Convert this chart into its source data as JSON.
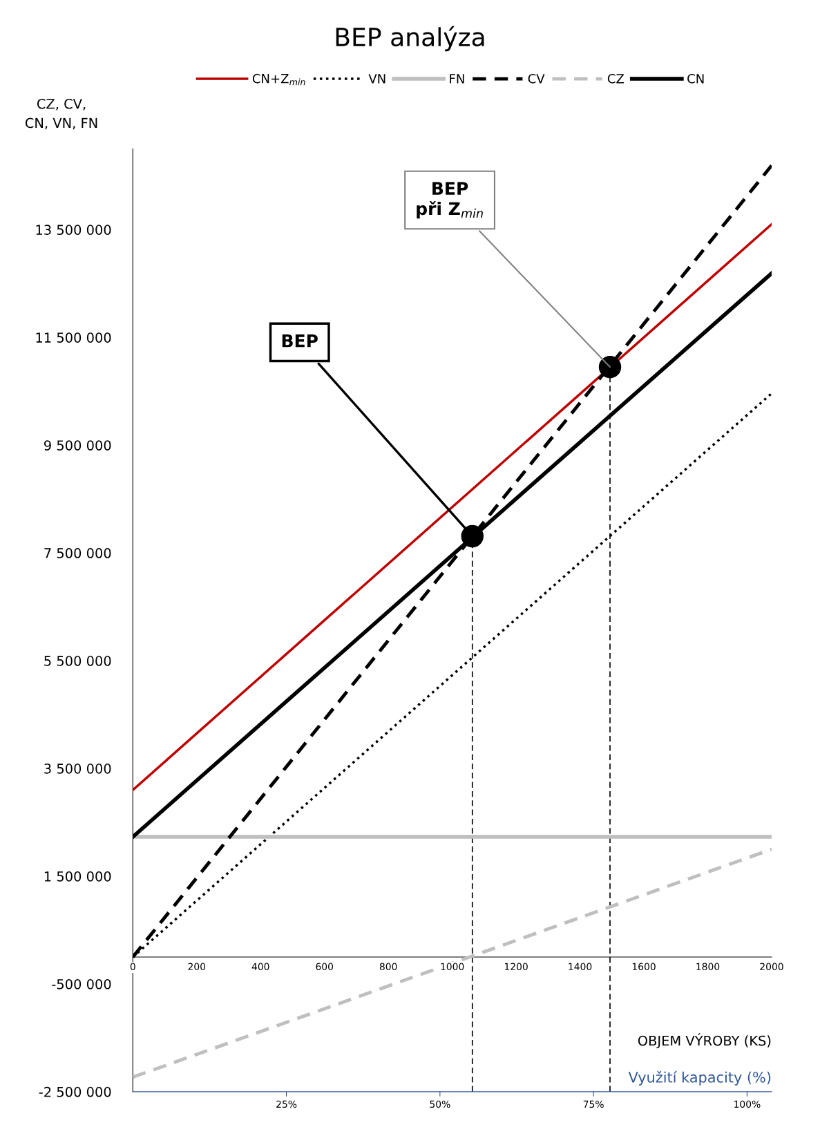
{
  "chart_data": {
    "type": "line",
    "title": "BEP analýza",
    "xlabel": "OBJEM VÝROBY (KS)",
    "ylabel": "CZ, CV,\nCN, VN, FN",
    "x2label": "Využití kapacity (%)",
    "xlim": [
      0,
      2000
    ],
    "xticks": [
      0,
      200,
      400,
      600,
      800,
      1000,
      1200,
      1400,
      1600,
      1800,
      2000
    ],
    "ylim": [
      -2500000,
      15000000
    ],
    "yticks": [
      {
        "value": -2500000,
        "label": "-2 500 000"
      },
      {
        "value": -500000,
        "label": "-500 000"
      },
      {
        "value": 1500000,
        "label": "1 500 000"
      },
      {
        "value": 3500000,
        "label": "3 500 000"
      },
      {
        "value": 5500000,
        "label": "5 500 000"
      },
      {
        "value": 7500000,
        "label": "7 500 000"
      },
      {
        "value": 9500000,
        "label": "9 500 000"
      },
      {
        "value": 11500000,
        "label": "11 500 000"
      },
      {
        "value": 13500000,
        "label": "13 500 000"
      }
    ],
    "x2lim": [
      0,
      104
    ],
    "x2ticks": [
      {
        "value": 25,
        "label": "25%"
      },
      {
        "value": 50,
        "label": "50%"
      },
      {
        "value": 75,
        "label": "75%"
      },
      {
        "value": 100,
        "label": "100%"
      }
    ],
    "grid": false,
    "legend": "top",
    "series": [
      {
        "name": "CN+Z$_{min}$",
        "color": "#c00000",
        "x": [
          0,
          2000
        ],
        "values": [
          3100000,
          13600000
        ],
        "line_style": "solid"
      },
      {
        "name": "VN",
        "color": "#000000",
        "x": [
          0,
          2000
        ],
        "values": [
          0,
          10460000
        ],
        "line_style": "dotted"
      },
      {
        "name": "FN",
        "color": "#bfbfbf",
        "x": [
          0,
          2000
        ],
        "values": [
          2230000,
          2230000
        ],
        "line_style": "solid"
      },
      {
        "name": "CV",
        "color": "#000000",
        "x": [
          0,
          2000
        ],
        "values": [
          0,
          14690000
        ],
        "line_style": "dashed"
      },
      {
        "name": "CZ",
        "color": "#bfbfbf",
        "x": [
          0,
          2000
        ],
        "values": [
          -2230000,
          2000000
        ],
        "line_style": "dashed"
      },
      {
        "name": "CN",
        "color": "#000000",
        "x": [
          0,
          2000
        ],
        "values": [
          2230000,
          12690000
        ],
        "line_style": "solid"
      },
      {
        "type": "scatter",
        "color": "#000000",
        "x": [
          1063,
          1494
        ],
        "values": [
          7810000,
          10950000
        ],
        "marker": "circle"
      }
    ],
    "ref_lines": [
      {
        "axis": "x",
        "value": 1063,
        "color": "#000000",
        "line_style": "dashed"
      },
      {
        "axis": "x",
        "value": 1494,
        "color": "#000000",
        "line_style": "dashed"
      }
    ],
    "annotations": [
      {
        "text": "BEP",
        "x": 1063,
        "y": 7810000
      },
      {
        "text": "BEP\npři Z$_{min}$",
        "x": 1494,
        "y": 10950000
      }
    ]
  }
}
